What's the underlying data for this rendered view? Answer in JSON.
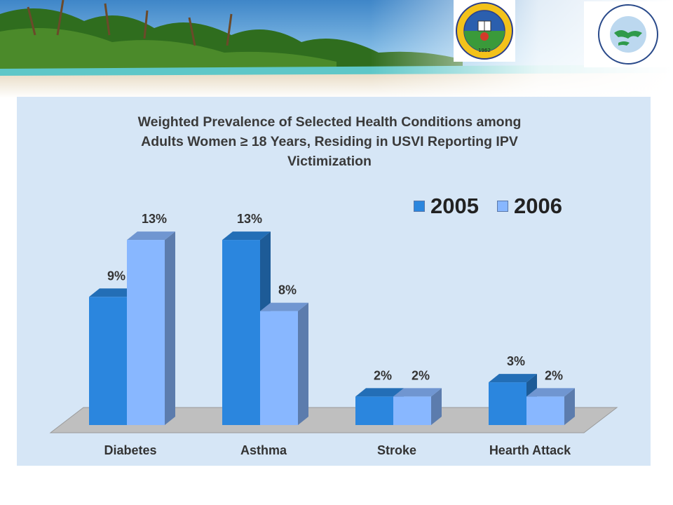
{
  "chart_data": {
    "type": "bar",
    "title_lines": [
      "Weighted Prevalence of Selected Health Conditions among",
      "Adults Women ≥ 18 Years, Residing in USVI Reporting IPV",
      "Victimization"
    ],
    "categories": [
      "Diabetes",
      "Asthma",
      "Stroke",
      "Hearth Attack"
    ],
    "series": [
      {
        "name": "2005",
        "values": [
          9,
          13,
          2,
          3
        ],
        "labels": [
          "9%",
          "13%",
          "2%",
          "3%"
        ],
        "color": "#2b86de"
      },
      {
        "name": "2006",
        "values": [
          13,
          8,
          2,
          2
        ],
        "labels": [
          "13%",
          "8%",
          "2%",
          "2%"
        ],
        "color": "#88b7ff"
      }
    ],
    "unit": "%",
    "ylim": [
      0,
      14
    ],
    "grid": false,
    "legend_position": "top-right",
    "style_3d": true
  },
  "colors": {
    "panel": "#d6e6f6",
    "floor": "#bfbfbf"
  },
  "logos": {
    "left": "University of the Virgin Islands seal",
    "right": "Caribbean Exploratory NCMHD Research Center logo"
  }
}
